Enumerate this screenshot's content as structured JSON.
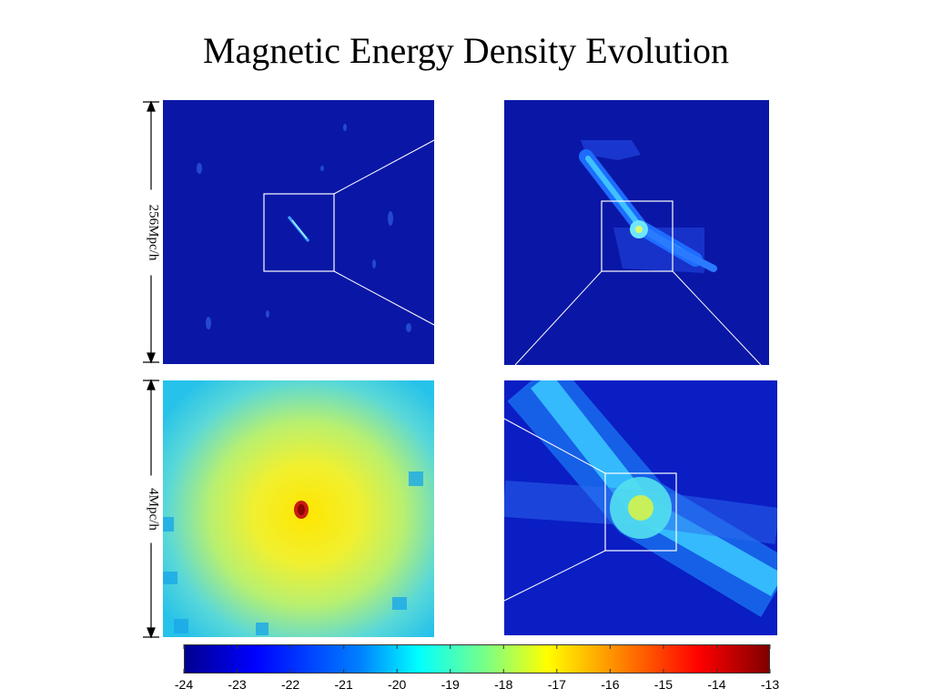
{
  "title": "Magnetic Energy Density Evolution",
  "scale_labels": {
    "top": "256Mpc/h",
    "bottom": "4Mpc/h"
  },
  "colorbar": {
    "colormap": "jet",
    "range": [
      -24,
      -13
    ],
    "ticks": [
      "-24",
      "-23",
      "-22",
      "-21",
      "-20",
      "-19",
      "-18",
      "-17",
      "-16",
      "-15",
      "-14",
      "-13"
    ]
  },
  "colors": {
    "background": "#ffffff",
    "panel_dark_blue": "#0a1aa0",
    "zoom_box": "#ffffff"
  },
  "panels": [
    {
      "name": "panel-full-box",
      "scale": "256Mpc/h"
    },
    {
      "name": "panel-zoom-1"
    },
    {
      "name": "panel-zoom-2"
    },
    {
      "name": "panel-zoom-3-core",
      "scale": "4Mpc/h"
    }
  ]
}
